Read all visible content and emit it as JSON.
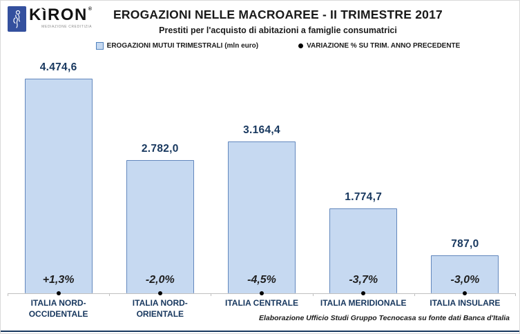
{
  "logo": {
    "brand": "KìRON",
    "registered": "®",
    "tagline": "MEDIAZIONE CREDITIZIA"
  },
  "header": {
    "title": "EROGAZIONI NELLE MACROAREE - II TRIMESTRE 2017",
    "subtitle": "Prestiti per l'acquisto di abitazioni a famiglie consumatrici"
  },
  "legend": {
    "series1": "EROGAZIONI MUTUI TRIMESTRALI (mln euro)",
    "series2": "VARIAZIONE % SU TRIM. ANNO PRECEDENTE"
  },
  "chart_data": {
    "type": "bar",
    "categories": [
      "ITALIA NORD-OCCIDENTALE",
      "ITALIA NORD-ORIENTALE",
      "ITALIA CENTRALE",
      "ITALIA MERIDIONALE",
      "ITALIA INSULARE"
    ],
    "series": [
      {
        "name": "EROGAZIONI MUTUI TRIMESTRALI (mln euro)",
        "values": [
          4474.6,
          2782.0,
          3164.4,
          1774.7,
          787.0
        ],
        "labels": [
          "4.474,6",
          "2.782,0",
          "3.164,4",
          "1.774,7",
          "787,0"
        ]
      },
      {
        "name": "VARIAZIONE % SU TRIM. ANNO PRECEDENTE",
        "values": [
          1.3,
          -2.0,
          -4.5,
          -3.7,
          -3.0
        ],
        "labels": [
          "+1,3%",
          "-2,0%",
          "-4,5%",
          "-3,7%",
          "-3,0%"
        ]
      }
    ],
    "ylim": [
      0,
      4474.6
    ],
    "legend_position": "top",
    "grid": false,
    "colors": {
      "bar_fill": "#c6d9f1",
      "bar_border": "#6287bd",
      "value_text": "#17375e",
      "marker": "#000000",
      "axis_line": "#bfbfbf"
    }
  },
  "footer": {
    "source": "Elaborazione Ufficio Studi Gruppo Tecnocasa su fonte dati Banca d'Italia"
  }
}
